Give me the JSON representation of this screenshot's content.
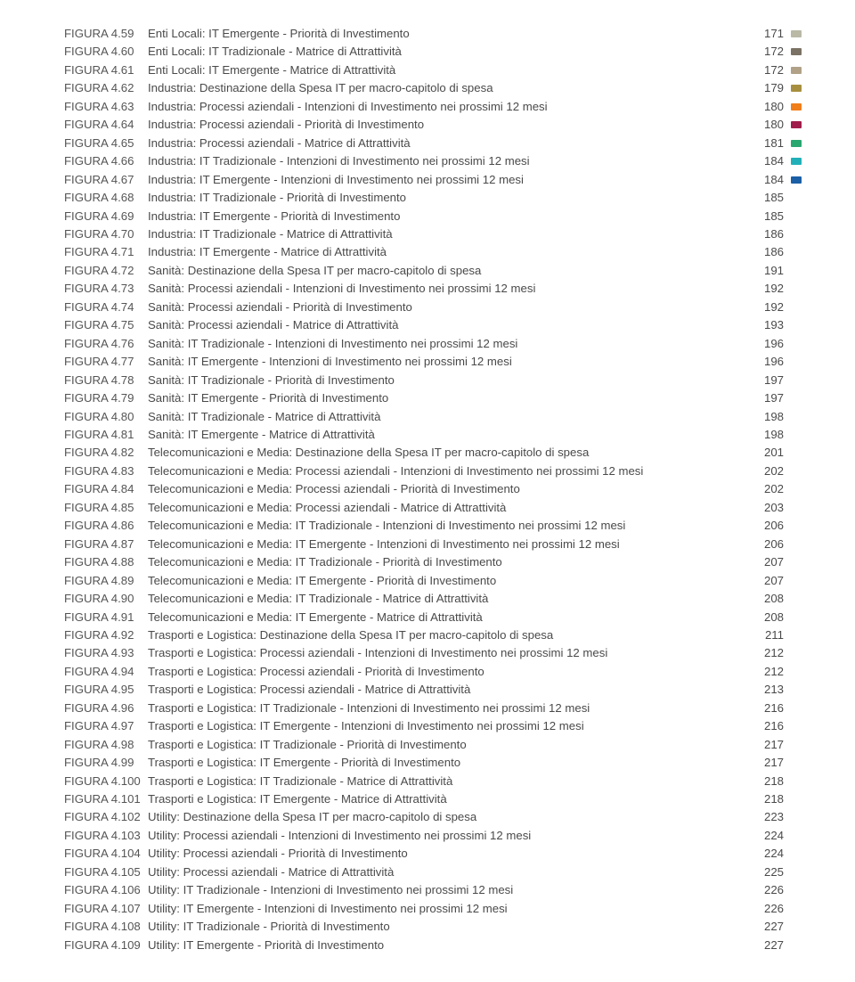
{
  "text_color": "#4a4a4a",
  "background_color": "#ffffff",
  "font_size_pt": 10,
  "swatch_colors": [
    "#b9b9a6",
    "#7a7264",
    "#b0a187",
    "#a78f3f",
    "#f07e1a",
    "#a01d4b",
    "#2aa66f",
    "#21b0b8",
    "#1b5fa6"
  ],
  "rows": [
    {
      "label": "FIGURA 4.59",
      "title": "Enti Locali: IT Emergente - Priorità di Investimento",
      "page": "171",
      "swatch": "#b9b9a6"
    },
    {
      "label": "FIGURA 4.60",
      "title": "Enti Locali: IT Tradizionale - Matrice di Attrattività",
      "page": "172",
      "swatch": "#7a7264"
    },
    {
      "label": "FIGURA 4.61",
      "title": "Enti Locali: IT Emergente - Matrice di Attrattività",
      "page": "172",
      "swatch": "#b0a187"
    },
    {
      "label": "FIGURA 4.62",
      "title": "Industria: Destinazione della Spesa IT per macro-capitolo di spesa",
      "page": "179",
      "swatch": "#a78f3f"
    },
    {
      "label": "FIGURA 4.63",
      "title": "Industria: Processi aziendali - Intenzioni di Investimento nei prossimi 12 mesi",
      "page": "180",
      "swatch": "#f07e1a"
    },
    {
      "label": "FIGURA 4.64",
      "title": "Industria: Processi aziendali - Priorità di Investimento",
      "page": "180",
      "swatch": "#a01d4b"
    },
    {
      "label": "FIGURA 4.65",
      "title": "Industria: Processi aziendali - Matrice di Attrattività",
      "page": "181",
      "swatch": "#2aa66f"
    },
    {
      "label": "FIGURA 4.66",
      "title": "Industria: IT Tradizionale - Intenzioni di Investimento nei prossimi 12 mesi",
      "page": "184",
      "swatch": "#21b0b8"
    },
    {
      "label": "FIGURA 4.67",
      "title": "Industria: IT Emergente - Intenzioni di Investimento nei prossimi 12 mesi",
      "page": "184",
      "swatch": "#1b5fa6"
    },
    {
      "label": "FIGURA 4.68",
      "title": "Industria: IT Tradizionale - Priorità di Investimento",
      "page": "185"
    },
    {
      "label": "FIGURA 4.69",
      "title": "Industria: IT Emergente - Priorità di Investimento",
      "page": "185"
    },
    {
      "label": "FIGURA 4.70",
      "title": "Industria: IT Tradizionale - Matrice di Attrattività",
      "page": "186"
    },
    {
      "label": "FIGURA 4.71",
      "title": "Industria: IT Emergente - Matrice di Attrattività",
      "page": "186"
    },
    {
      "label": "FIGURA 4.72",
      "title": "Sanità: Destinazione della Spesa IT per macro-capitolo di spesa",
      "page": "191"
    },
    {
      "label": "FIGURA 4.73",
      "title": "Sanità: Processi aziendali - Intenzioni di Investimento nei prossimi 12 mesi",
      "page": "192"
    },
    {
      "label": "FIGURA 4.74",
      "title": "Sanità: Processi aziendali - Priorità di Investimento",
      "page": "192"
    },
    {
      "label": "FIGURA 4.75",
      "title": "Sanità: Processi aziendali - Matrice di Attrattività",
      "page": "193"
    },
    {
      "label": "FIGURA 4.76",
      "title": "Sanità: IT Tradizionale - Intenzioni di Investimento nei prossimi 12 mesi",
      "page": "196"
    },
    {
      "label": "FIGURA 4.77",
      "title": "Sanità: IT Emergente - Intenzioni di Investimento nei prossimi 12 mesi",
      "page": "196"
    },
    {
      "label": "FIGURA 4.78",
      "title": "Sanità: IT Tradizionale - Priorità di Investimento",
      "page": "197"
    },
    {
      "label": "FIGURA 4.79",
      "title": "Sanità: IT Emergente - Priorità di Investimento",
      "page": "197"
    },
    {
      "label": "FIGURA 4.80",
      "title": "Sanità: IT Tradizionale - Matrice di Attrattività",
      "page": "198"
    },
    {
      "label": "FIGURA 4.81",
      "title": "Sanità: IT Emergente - Matrice di Attrattività",
      "page": "198"
    },
    {
      "label": "FIGURA 4.82",
      "title": "Telecomunicazioni e Media: Destinazione della Spesa IT per macro-capitolo di spesa",
      "page": "201"
    },
    {
      "label": "FIGURA 4.83",
      "title": "Telecomunicazioni e Media: Processi aziendali - Intenzioni di Investimento nei prossimi 12 mesi",
      "page": "202"
    },
    {
      "label": "FIGURA 4.84",
      "title": "Telecomunicazioni e Media: Processi aziendali - Priorità di Investimento",
      "page": "202"
    },
    {
      "label": "FIGURA 4.85",
      "title": "Telecomunicazioni e Media: Processi aziendali - Matrice di Attrattività",
      "page": "203"
    },
    {
      "label": "FIGURA 4.86",
      "title": "Telecomunicazioni e Media: IT Tradizionale - Intenzioni di Investimento nei prossimi 12 mesi",
      "page": "206"
    },
    {
      "label": "FIGURA 4.87",
      "title": "Telecomunicazioni e Media: IT Emergente - Intenzioni di Investimento nei prossimi 12 mesi",
      "page": "206"
    },
    {
      "label": "FIGURA 4.88",
      "title": "Telecomunicazioni e Media: IT Tradizionale - Priorità di Investimento",
      "page": "207"
    },
    {
      "label": "FIGURA 4.89",
      "title": "Telecomunicazioni e Media: IT Emergente - Priorità di Investimento",
      "page": "207"
    },
    {
      "label": "FIGURA 4.90",
      "title": "Telecomunicazioni e Media: IT Tradizionale - Matrice di Attrattività",
      "page": "208"
    },
    {
      "label": "FIGURA 4.91",
      "title": "Telecomunicazioni e Media: IT Emergente - Matrice di Attrattività",
      "page": "208"
    },
    {
      "label": "FIGURA 4.92",
      "title": "Trasporti e Logistica: Destinazione della Spesa IT per macro-capitolo di spesa",
      "page": "211"
    },
    {
      "label": "FIGURA 4.93",
      "title": "Trasporti e Logistica: Processi aziendali - Intenzioni di Investimento nei prossimi 12 mesi",
      "page": "212"
    },
    {
      "label": "FIGURA 4.94",
      "title": "Trasporti e Logistica: Processi aziendali - Priorità di Investimento",
      "page": "212"
    },
    {
      "label": "FIGURA 4.95",
      "title": "Trasporti e Logistica: Processi aziendali - Matrice di Attrattività",
      "page": "213"
    },
    {
      "label": "FIGURA 4.96",
      "title": "Trasporti e Logistica: IT Tradizionale - Intenzioni di Investimento nei prossimi 12 mesi",
      "page": "216"
    },
    {
      "label": "FIGURA 4.97",
      "title": "Trasporti e Logistica: IT Emergente - Intenzioni di Investimento nei prossimi 12 mesi",
      "page": "216"
    },
    {
      "label": "FIGURA 4.98",
      "title": "Trasporti e Logistica: IT Tradizionale - Priorità di Investimento",
      "page": "217"
    },
    {
      "label": "FIGURA 4.99",
      "title": "Trasporti e Logistica: IT Emergente - Priorità di Investimento",
      "page": "217"
    },
    {
      "label": "FIGURA 4.100",
      "title": "Trasporti e Logistica: IT Tradizionale - Matrice di Attrattività",
      "page": "218"
    },
    {
      "label": "FIGURA 4.101",
      "title": "Trasporti e Logistica: IT Emergente - Matrice di Attrattività",
      "page": "218"
    },
    {
      "label": "FIGURA 4.102",
      "title": "Utility: Destinazione della Spesa IT per macro-capitolo di spesa",
      "page": "223"
    },
    {
      "label": "FIGURA 4.103",
      "title": "Utility: Processi aziendali - Intenzioni di Investimento nei prossimi 12 mesi",
      "page": "224"
    },
    {
      "label": "FIGURA 4.104",
      "title": "Utility: Processi aziendali - Priorità di Investimento",
      "page": "224"
    },
    {
      "label": "FIGURA 4.105",
      "title": "Utility: Processi aziendali - Matrice di Attrattività",
      "page": "225"
    },
    {
      "label": "FIGURA 4.106",
      "title": "Utility: IT Tradizionale - Intenzioni di Investimento nei prossimi 12 mesi",
      "page": "226"
    },
    {
      "label": "FIGURA 4.107",
      "title": "Utility: IT Emergente - Intenzioni di Investimento nei prossimi 12 mesi",
      "page": "226"
    },
    {
      "label": "FIGURA 4.108",
      "title": "Utility: IT Tradizionale - Priorità di Investimento",
      "page": "227"
    },
    {
      "label": "FIGURA 4.109",
      "title": "Utility: IT Emergente - Priorità di Investimento",
      "page": "227"
    }
  ]
}
